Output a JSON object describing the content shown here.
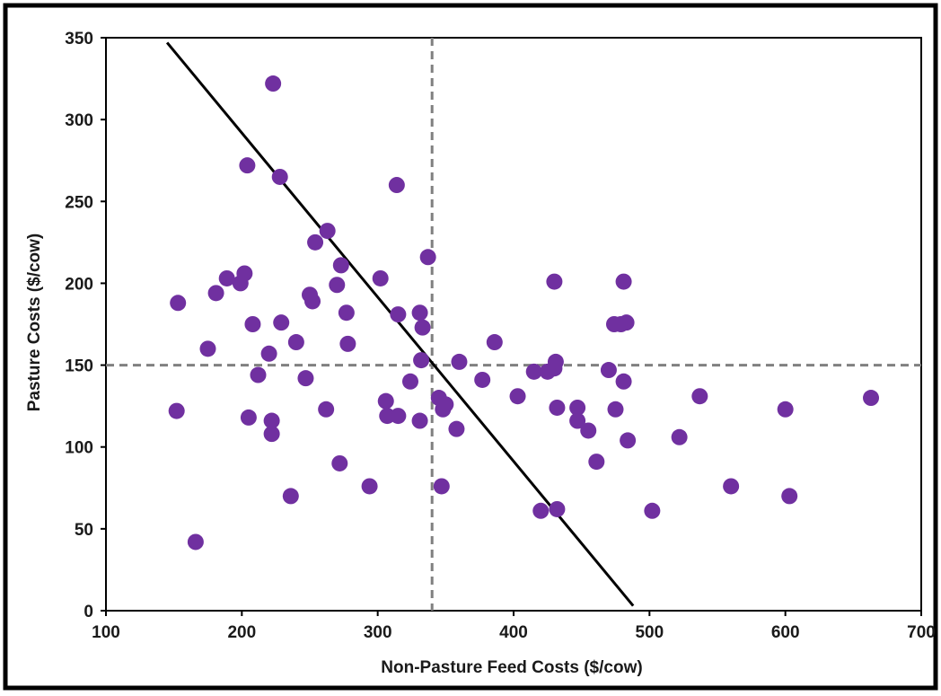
{
  "chart_data": {
    "type": "scatter",
    "title": "",
    "xlabel": "Non-Pasture Feed Costs ($/cow)",
    "ylabel": "Pasture Costs ($/cow)",
    "xlim": [
      100,
      700
    ],
    "ylim": [
      0,
      350
    ],
    "x_ticks": [
      100,
      200,
      300,
      400,
      500,
      600,
      700
    ],
    "y_ticks": [
      0,
      50,
      100,
      150,
      200,
      250,
      300,
      350
    ],
    "grid": false,
    "legend": "none",
    "marker_color": "#7030A0",
    "reference_lines": [
      {
        "orientation": "vertical",
        "value": 340,
        "style": "dashed",
        "color": "#808080"
      },
      {
        "orientation": "horizontal",
        "value": 150,
        "style": "dashed",
        "color": "#808080"
      }
    ],
    "trend_line": {
      "x1": 145,
      "y1": 347,
      "x2": 488,
      "y2": 3,
      "color": "#000000"
    },
    "points": [
      [
        153,
        188
      ],
      [
        152,
        122
      ],
      [
        166,
        42
      ],
      [
        175,
        160
      ],
      [
        181,
        194
      ],
      [
        189,
        203
      ],
      [
        199,
        200
      ],
      [
        202,
        206
      ],
      [
        204,
        272
      ],
      [
        205,
        118
      ],
      [
        208,
        175
      ],
      [
        212,
        144
      ],
      [
        220,
        157
      ],
      [
        222,
        116
      ],
      [
        222,
        108
      ],
      [
        223,
        322
      ],
      [
        228,
        265
      ],
      [
        229,
        176
      ],
      [
        236,
        70
      ],
      [
        240,
        164
      ],
      [
        247,
        142
      ],
      [
        250,
        193
      ],
      [
        252,
        189
      ],
      [
        254,
        225
      ],
      [
        262,
        123
      ],
      [
        263,
        232
      ],
      [
        270,
        199
      ],
      [
        272,
        90
      ],
      [
        273,
        211
      ],
      [
        277,
        182
      ],
      [
        278,
        163
      ],
      [
        294,
        76
      ],
      [
        302,
        203
      ],
      [
        306,
        128
      ],
      [
        307,
        119
      ],
      [
        314,
        260
      ],
      [
        315,
        181
      ],
      [
        315,
        119
      ],
      [
        324,
        140
      ],
      [
        331,
        182
      ],
      [
        331,
        116
      ],
      [
        332,
        153
      ],
      [
        333,
        173
      ],
      [
        337,
        216
      ],
      [
        345,
        130
      ],
      [
        347,
        76
      ],
      [
        348,
        123
      ],
      [
        350,
        126
      ],
      [
        358,
        111
      ],
      [
        360,
        152
      ],
      [
        377,
        141
      ],
      [
        386,
        164
      ],
      [
        403,
        131
      ],
      [
        415,
        146
      ],
      [
        420,
        61
      ],
      [
        425,
        146
      ],
      [
        430,
        148
      ],
      [
        430,
        201
      ],
      [
        431,
        152
      ],
      [
        432,
        62
      ],
      [
        432,
        124
      ],
      [
        447,
        124
      ],
      [
        447,
        116
      ],
      [
        455,
        110
      ],
      [
        461,
        91
      ],
      [
        470,
        147
      ],
      [
        474,
        175
      ],
      [
        475,
        123
      ],
      [
        479,
        175
      ],
      [
        481,
        201
      ],
      [
        481,
        140
      ],
      [
        483,
        176
      ],
      [
        484,
        104
      ],
      [
        502,
        61
      ],
      [
        522,
        106
      ],
      [
        537,
        131
      ],
      [
        560,
        76
      ],
      [
        600,
        123
      ],
      [
        603,
        70
      ],
      [
        663,
        130
      ]
    ]
  }
}
